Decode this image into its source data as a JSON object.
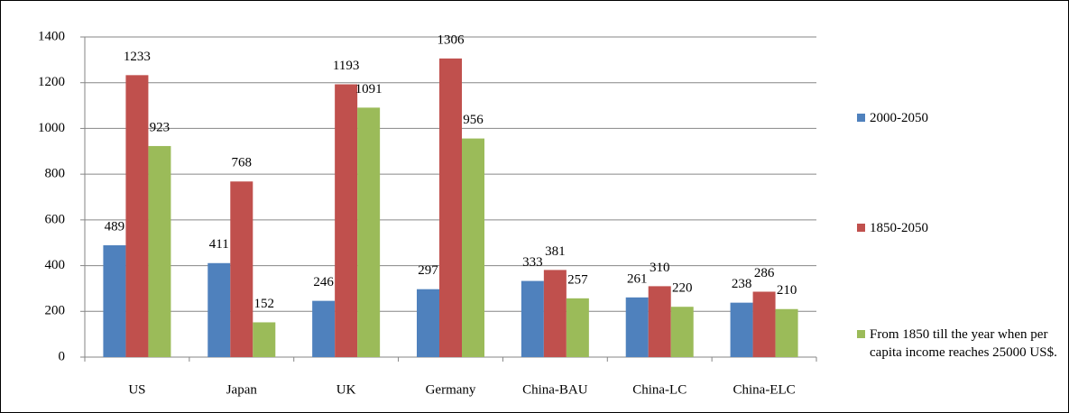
{
  "chart_data": {
    "type": "bar",
    "categories": [
      "US",
      "Japan",
      "UK",
      "Germany",
      "China-BAU",
      "China-LC",
      "China-ELC"
    ],
    "series": [
      {
        "name": "2000-2050",
        "color": "#4f81bd",
        "values": [
          489,
          411,
          246,
          297,
          333,
          261,
          238
        ]
      },
      {
        "name": "1850-2050",
        "color": "#c0504d",
        "values": [
          1233,
          768,
          1193,
          1306,
          381,
          310,
          286
        ]
      },
      {
        "name": "From 1850 till the year when per capita income reaches 25000 US$.",
        "color": "#9bbb59",
        "values": [
          923,
          152,
          1091,
          956,
          257,
          220,
          210
        ]
      }
    ],
    "ylim": [
      0,
      1400
    ],
    "yticks": [
      0,
      200,
      400,
      600,
      800,
      1000,
      1200,
      1400
    ],
    "grid": true,
    "legend": "right"
  }
}
